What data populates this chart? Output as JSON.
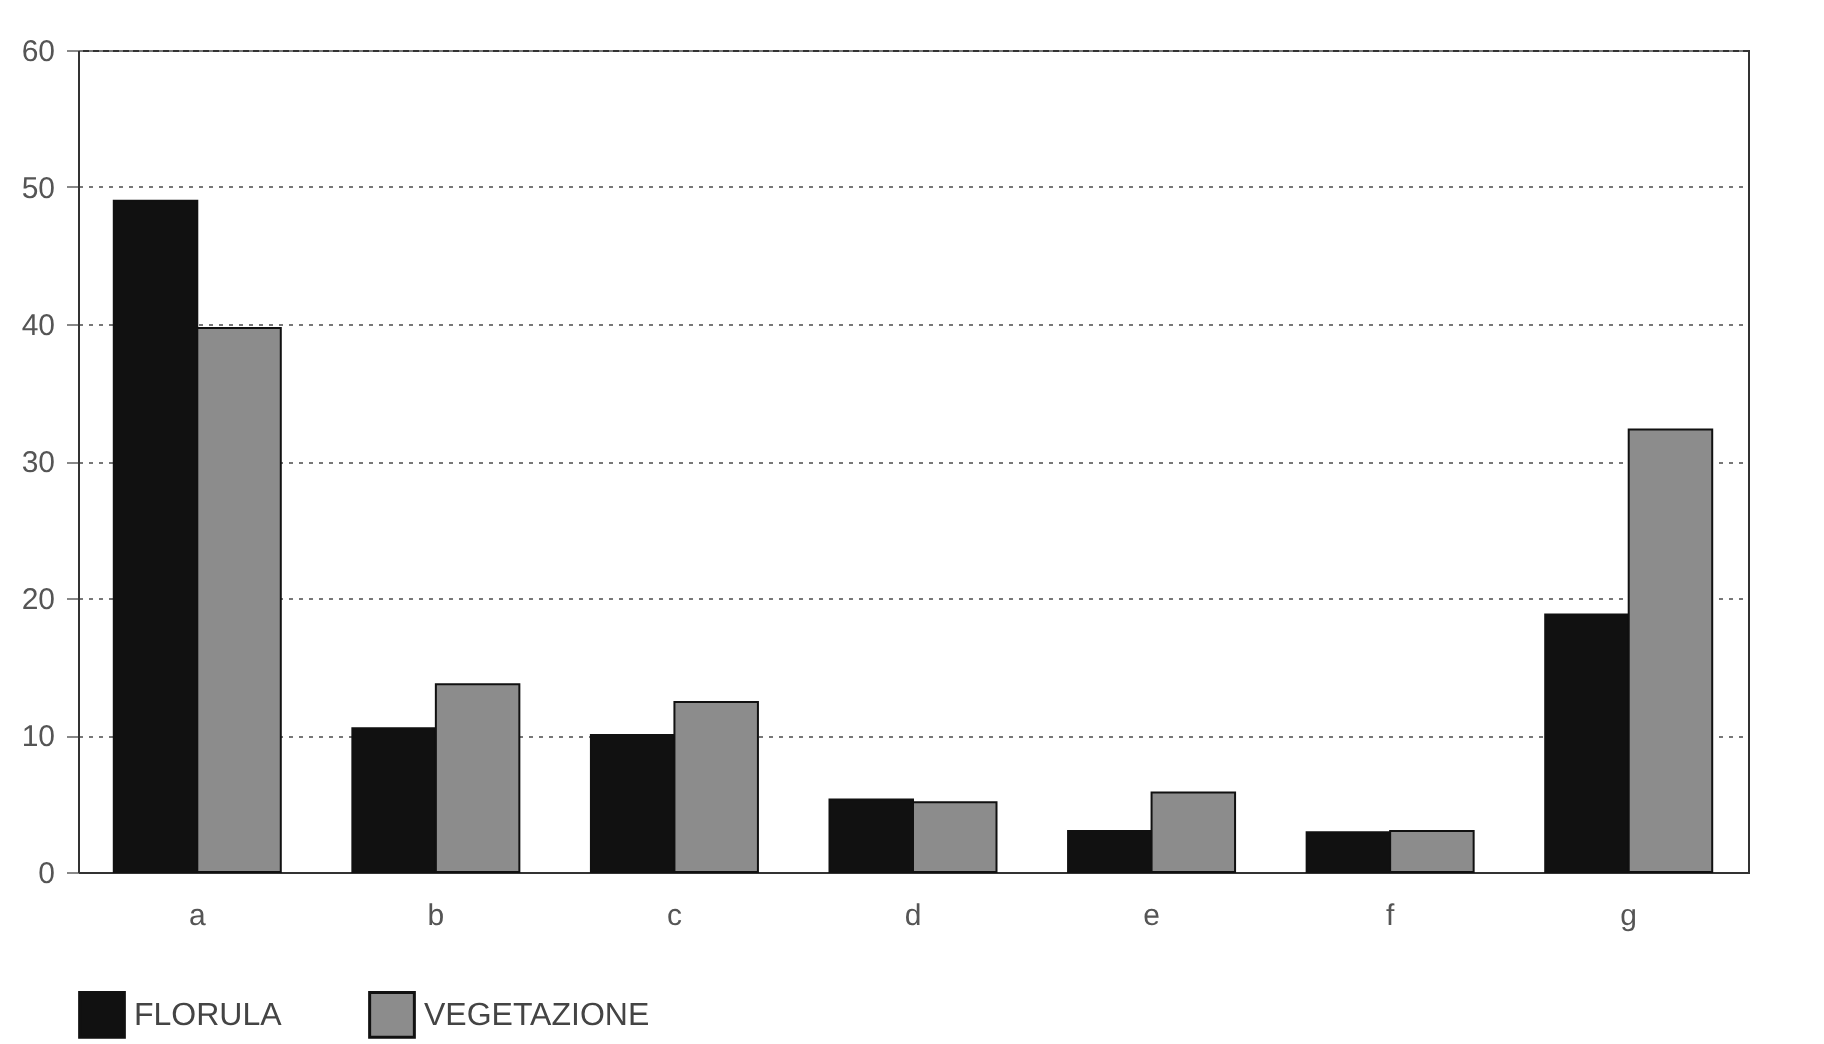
{
  "chart_data": {
    "type": "bar",
    "categories": [
      "a",
      "b",
      "c",
      "d",
      "e",
      "f",
      "g"
    ],
    "series": [
      {
        "name": "FLORULA",
        "color": "#111111",
        "values": [
          49,
          10.5,
          10,
          5.3,
          3,
          2.9,
          18.8
        ]
      },
      {
        "name": "VEGETAZIONE",
        "color": "#8c8c8c",
        "values": [
          39.7,
          13.7,
          12.4,
          5.1,
          5.8,
          3,
          32.3
        ]
      }
    ],
    "ylim": [
      0,
      60
    ],
    "yticks": [
      0,
      10,
      20,
      30,
      40,
      50,
      60
    ],
    "grid": "y",
    "legend": "bottom"
  }
}
